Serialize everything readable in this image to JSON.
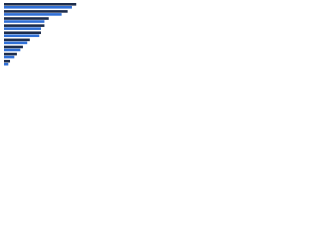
{
  "chart_data": {
    "type": "bar",
    "orientation": "horizontal",
    "categories": [
      null,
      null,
      null,
      null,
      null,
      null,
      null,
      null,
      null
    ],
    "series": [
      {
        "color": "#1c2c4c",
        "values": [
          84,
          74,
          52,
          47,
          43,
          30,
          22,
          15,
          7
        ]
      },
      {
        "color": "#2f6fd6",
        "values": [
          79,
          67,
          47,
          43,
          41,
          27,
          19,
          12,
          5
        ]
      }
    ],
    "xlim": [
      0,
      100
    ]
  }
}
